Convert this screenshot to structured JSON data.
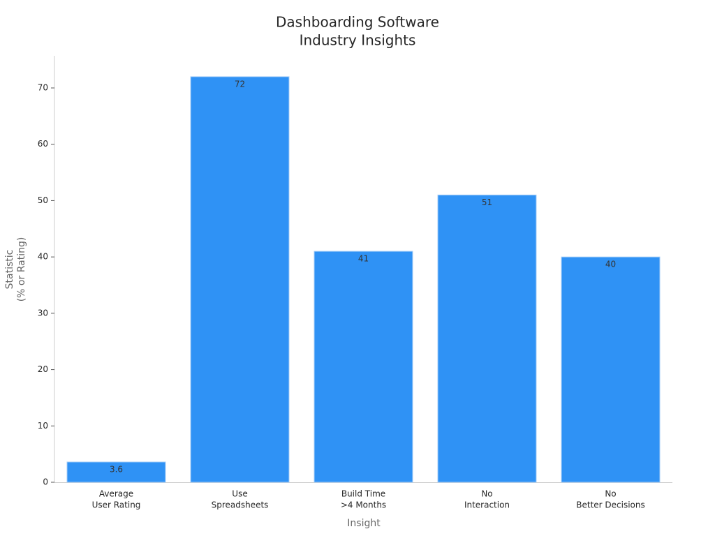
{
  "chart_data": {
    "type": "bar",
    "title": [
      "Dashboarding Software",
      "Industry Insights"
    ],
    "x_label": "Insight",
    "y_label": [
      "Statistic",
      "(% or Rating)"
    ],
    "categories": [
      [
        "Average",
        "User Rating"
      ],
      [
        "Use",
        "Spreadsheets"
      ],
      [
        "Build Time",
        ">4 Months"
      ],
      [
        "No",
        "Interaction"
      ],
      [
        "No",
        "Better Decisions"
      ]
    ],
    "values": [
      3.6,
      72,
      41,
      51,
      40
    ],
    "color": "#2f92f5",
    "ylim": [
      0,
      75.7
    ],
    "yticks": [
      0,
      10,
      20,
      30,
      40,
      50,
      60,
      70
    ],
    "grid": false
  }
}
